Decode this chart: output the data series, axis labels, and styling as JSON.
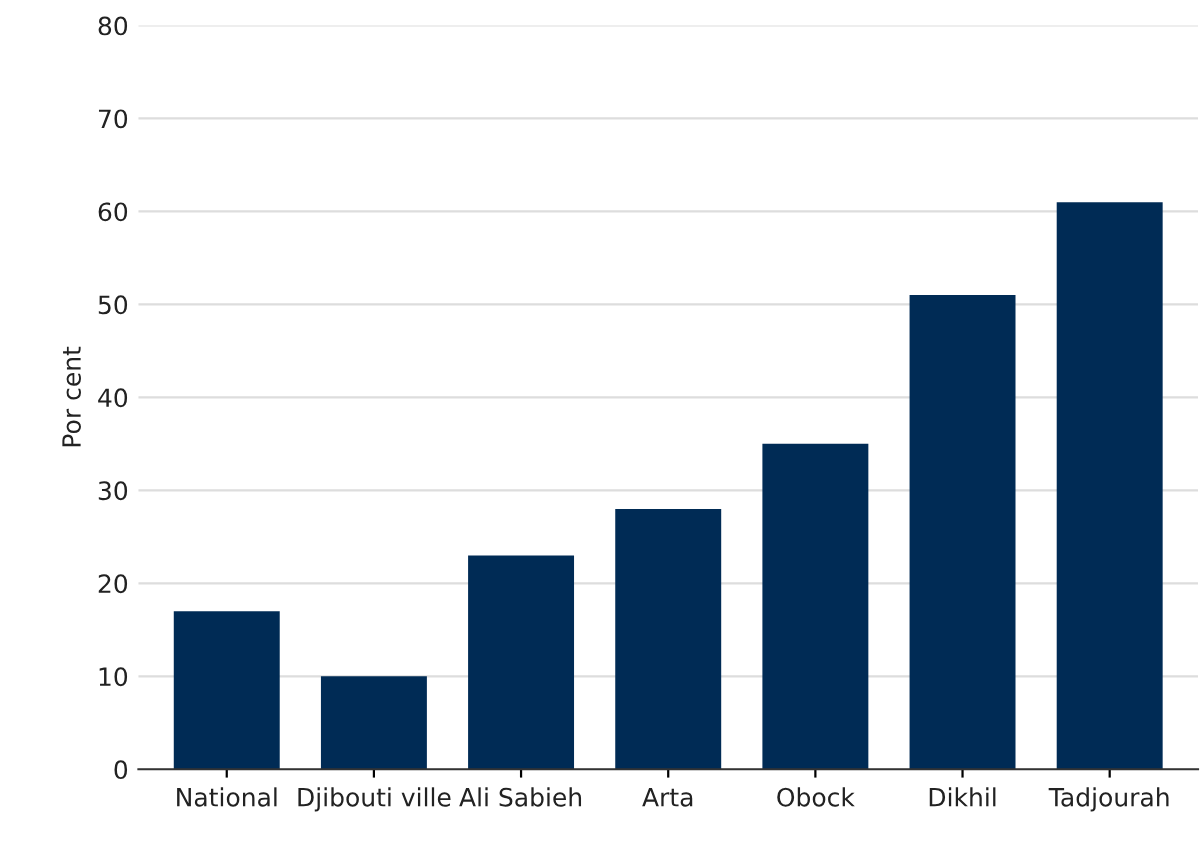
{
  "chart_data": {
    "type": "bar",
    "ylabel": "Por cent",
    "categories": [
      "National",
      "Djibouti ville",
      "Ali Sabieh",
      "Arta",
      "Obock",
      "Dikhil",
      "Tadjourah"
    ],
    "values": [
      17,
      10,
      23,
      28,
      35,
      51,
      61
    ],
    "color": "#002b55",
    "ylim": [
      0,
      80
    ],
    "yticks": [
      0,
      10,
      20,
      30,
      40,
      50,
      60,
      70,
      80
    ],
    "grid": "y"
  }
}
